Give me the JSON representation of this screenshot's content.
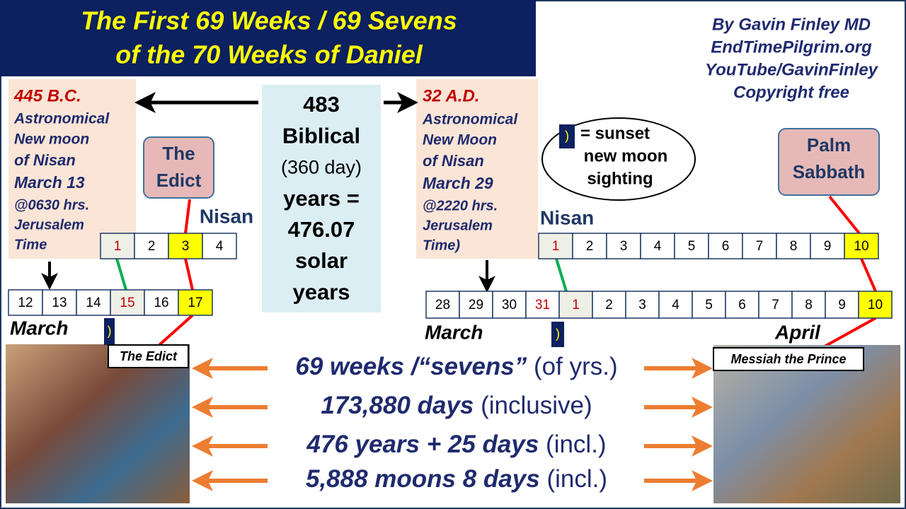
{
  "title": [
    "The First 69 Weeks / 69 Sevens",
    "of the 70 Weeks of Daniel"
  ],
  "credits": [
    "By Gavin Finley MD",
    "EndTimePilgrim.org",
    "YouTube/GavinFinley",
    "Copyright free"
  ],
  "notes": [
    {
      "date": "445 B.C.",
      "lines": [
        "Astronomical",
        "New moon",
        "of Nisan",
        "March 13",
        "@0630 hrs.",
        "Jerusalem",
        "Time"
      ]
    },
    {
      "date": "32 A.D.",
      "lines": [
        "Astronomical",
        "New Moon",
        "of Nisan",
        "March 29",
        "@2220 hrs.",
        "Jerusalem",
        "Time)"
      ]
    }
  ],
  "center_box": [
    "483",
    "Biblical",
    "(360 day)",
    "years =",
    "476.07",
    "solar",
    "years"
  ],
  "callouts": [
    {
      "lines": [
        "The",
        "Edict"
      ]
    },
    {
      "lines": [
        "Palm",
        "Sabbath"
      ]
    }
  ],
  "legend": {
    "symbol": ")",
    "lines": [
      "= sunset",
      "new moon",
      "sighting"
    ]
  },
  "calendars": [
    {
      "labels": [
        "Nisan"
      ],
      "days": [
        1,
        2,
        3,
        4
      ]
    },
    {
      "labels": [
        "March"
      ],
      "days": [
        12,
        13,
        14,
        15,
        16,
        17
      ]
    },
    {
      "labels": [
        "Nisan"
      ],
      "days": [
        1,
        2,
        3,
        4,
        5,
        6,
        7,
        8,
        9,
        10
      ]
    },
    {
      "labels": [
        "March",
        "April"
      ],
      "days": [
        28,
        29,
        30,
        31,
        1,
        2,
        3,
        4,
        5,
        6,
        7,
        8,
        9,
        10
      ]
    }
  ],
  "image_labels": [
    "The Edict",
    "Messiah the Prince"
  ],
  "summary": [
    {
      "bold": "69 weeks /“sevens”",
      "normal": " (of yrs.)"
    },
    {
      "bold": "173,880 days",
      "normal": " (inclusive)"
    },
    {
      "bold": "476 years + 25 days",
      "normal": " (incl.)"
    },
    {
      "bold": "5,888 moons  8 days",
      "normal": " (incl.)"
    }
  ]
}
